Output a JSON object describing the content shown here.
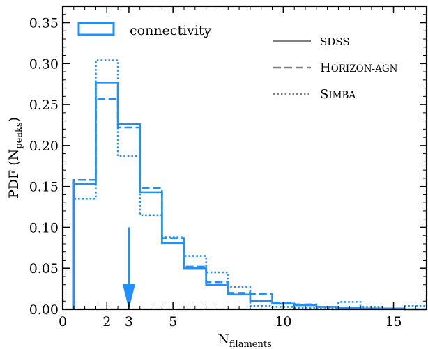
{
  "chart_data": {
    "type": "histogram",
    "xlabel": "N",
    "xlabel_sub": "filaments",
    "ylabel": "PDF (N",
    "ylabel_sub": "peaks",
    "ylabel_close": ")",
    "xlim": [
      0,
      16.5
    ],
    "ylim": [
      0,
      0.37
    ],
    "x_ticks": [
      0,
      2,
      3,
      5,
      10,
      15
    ],
    "x_tick_labels": [
      "0",
      "2",
      "3",
      "5",
      "10",
      "15"
    ],
    "y_ticks": [
      0,
      0.05,
      0.1,
      0.15,
      0.2,
      0.25,
      0.3,
      0.35
    ],
    "y_tick_labels": [
      "0.00",
      "0.05",
      "0.10",
      "0.15",
      "0.20",
      "0.25",
      "0.30",
      "0.35"
    ],
    "bin_edges": [
      0.5,
      1.5,
      2.5,
      3.5,
      4.5,
      5.5,
      6.5,
      7.5,
      8.5,
      9.5,
      10.5,
      11.5,
      12.5,
      13.5,
      14.5,
      15.5,
      16.5
    ],
    "series": [
      {
        "name": "SDSS",
        "linestyle": "solid",
        "values": [
          0.153,
          0.277,
          0.226,
          0.143,
          0.081,
          0.05,
          0.03,
          0.018,
          0.01,
          0.007,
          0.005,
          0.003,
          0.002,
          0.001,
          0.001,
          0.0
        ]
      },
      {
        "name": "HORIZON-AGN",
        "linestyle": "dashed",
        "values": [
          0.158,
          0.257,
          0.222,
          0.148,
          0.087,
          0.052,
          0.033,
          0.02,
          0.019,
          0.008,
          0.006,
          0.003,
          0.002,
          0.001,
          0.001,
          0.0
        ]
      },
      {
        "name": "SIMBA",
        "linestyle": "dotted",
        "values": [
          0.135,
          0.304,
          0.187,
          0.115,
          0.088,
          0.065,
          0.045,
          0.027,
          0.004,
          0.003,
          0.002,
          0.001,
          0.009,
          0.003,
          0.001,
          0.004
        ]
      }
    ],
    "color": "#1E90FF",
    "arrow": {
      "x": 3,
      "y_from": 0.1,
      "y_to": 0.0
    },
    "legend_primary": {
      "label": "connectivity",
      "position": "top-left"
    },
    "legend_styles": {
      "position": "top-right",
      "entries": [
        {
          "label": "SDSS",
          "linestyle": "solid",
          "small_caps": false
        },
        {
          "label": "Horizon-AGN",
          "linestyle": "dashed",
          "small_caps": true
        },
        {
          "label": "Simba",
          "linestyle": "dotted",
          "small_caps": true
        }
      ],
      "line_color": "#808080"
    },
    "grid": false
  }
}
